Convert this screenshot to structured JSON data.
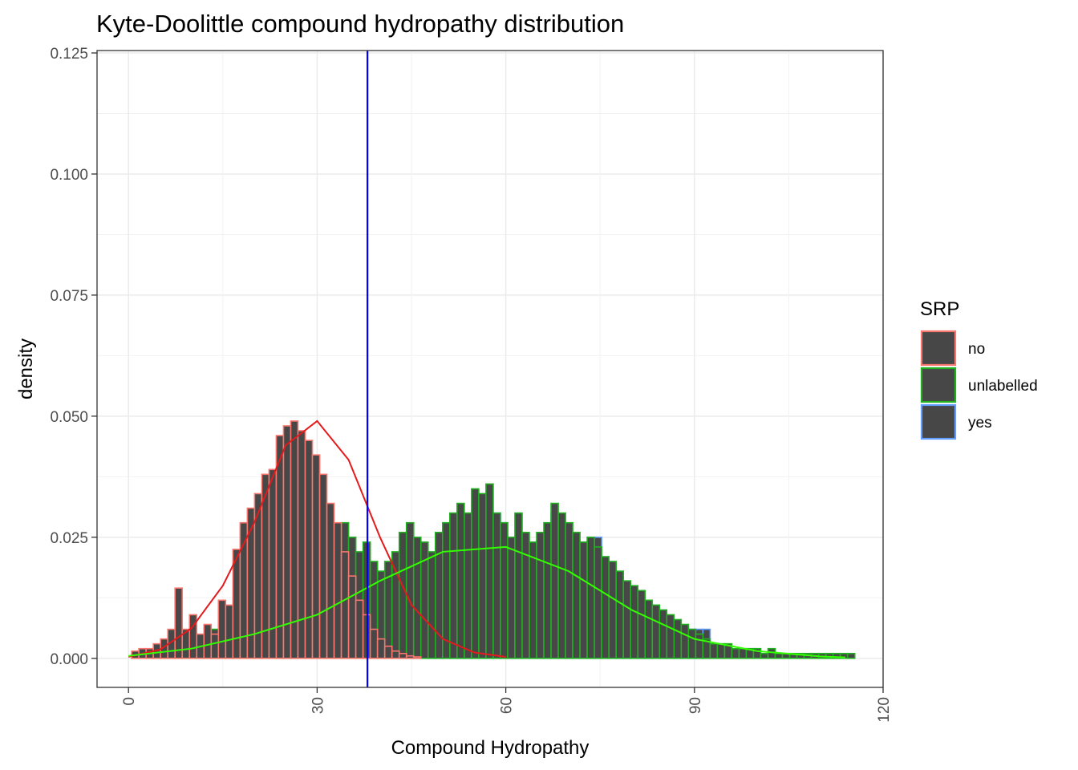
{
  "chart_data": {
    "type": "histogram",
    "title": "Kyte-Doolittle compound hydropathy distribution",
    "xlabel": "Compound Hydropathy",
    "ylabel": "density",
    "xlim": [
      -5,
      120
    ],
    "ylim": [
      -0.006,
      0.1255
    ],
    "x_ticks": [
      0,
      30,
      60,
      90,
      120
    ],
    "y_ticks": [
      0.0,
      0.025,
      0.05,
      0.075,
      0.1,
      0.125
    ],
    "y_tick_labels": [
      "0.000",
      "0.025",
      "0.050",
      "0.075",
      "0.100",
      "0.125"
    ],
    "grid": true,
    "legend": {
      "title": "SRP",
      "position": "right",
      "fill": "#474747",
      "items": [
        {
          "label": "no",
          "color": "#F8766D"
        },
        {
          "label": "unlabelled",
          "color": "#20B020"
        },
        {
          "label": "yes",
          "color": "#619CFF"
        }
      ]
    },
    "bin_start": 0.5,
    "bin_width": 1.15,
    "series": [
      {
        "name": "yes",
        "color": "#619CFF",
        "fill": "#474747",
        "values": [
          0,
          0,
          0,
          0,
          0,
          0,
          0,
          0,
          0,
          0,
          0,
          0,
          0,
          0,
          0,
          0,
          0,
          0,
          0,
          0,
          0.008,
          0.008,
          0.008,
          0,
          0,
          0,
          0,
          0,
          0,
          0,
          0,
          0,
          0,
          0,
          0,
          0,
          0,
          0.008,
          0.008,
          0.016,
          0.016,
          0.02,
          0.018,
          0.016,
          0.018,
          0.02,
          0.022,
          0.028,
          0.023,
          0.025,
          0.03,
          0.028,
          0.025,
          0.023,
          0.022,
          0.02,
          0.022,
          0.025,
          0.03,
          0.025,
          0.022,
          0.02,
          0.018,
          0.025,
          0.025,
          0.02,
          0.018,
          0.016,
          0.015,
          0.014,
          0.012,
          0.01,
          0.008,
          0.008,
          0.008,
          0.006,
          0.006,
          0.006,
          0.006,
          0.006,
          0,
          0,
          0,
          0,
          0,
          0,
          0,
          0,
          0,
          0,
          0,
          0,
          0,
          0,
          0,
          0,
          0,
          0,
          0,
          0
        ]
      },
      {
        "name": "unlabelled",
        "color": "#20B020",
        "fill": "#474747",
        "values": [
          0.001,
          0,
          0.001,
          0.002,
          0.002,
          0.003,
          0.002,
          0.003,
          0.004,
          0.003,
          0.004,
          0.006,
          0.008,
          0.01,
          0.012,
          0.013,
          0.014,
          0.013,
          0.015,
          0.016,
          0.02,
          0.018,
          0.02,
          0.02,
          0.025,
          0.02,
          0.022,
          0.024,
          0.025,
          0.028,
          0.025,
          0.022,
          0.024,
          0.02,
          0.018,
          0.02,
          0.022,
          0.026,
          0.028,
          0.025,
          0.024,
          0.022,
          0.026,
          0.028,
          0.03,
          0.032,
          0.03,
          0.035,
          0.034,
          0.036,
          0.03,
          0.028,
          0.025,
          0.03,
          0.026,
          0.024,
          0.026,
          0.028,
          0.032,
          0.03,
          0.028,
          0.026,
          0.024,
          0.025,
          0.023,
          0.021,
          0.02,
          0.018,
          0.016,
          0.015,
          0.014,
          0.012,
          0.011,
          0.01,
          0.009,
          0.008,
          0.007,
          0.006,
          0.005,
          0.004,
          0.003,
          0.003,
          0.003,
          0.002,
          0.002,
          0.002,
          0.002,
          0.001,
          0.002,
          0.001,
          0.001,
          0.001,
          0.001,
          0.001,
          0.001,
          0.001,
          0.001,
          0.001,
          0.001,
          0.001
        ]
      },
      {
        "name": "no",
        "color": "#F8766D",
        "fill": "#474747",
        "values": [
          0.0015,
          0.002,
          0.002,
          0.003,
          0.004,
          0.006,
          0.0145,
          0.006,
          0.009,
          0.005,
          0.007,
          0.005,
          0.012,
          0.011,
          0.0225,
          0.028,
          0.031,
          0.034,
          0.038,
          0.039,
          0.046,
          0.048,
          0.049,
          0.047,
          0.045,
          0.042,
          0.038,
          0.032,
          0.028,
          0.022,
          0.017,
          0.012,
          0.009,
          0.006,
          0.004,
          0.0025,
          0.0015,
          0.001,
          0.0005,
          0.0003,
          0,
          0,
          0,
          0,
          0,
          0,
          0,
          0,
          0,
          0,
          0,
          0,
          0,
          0,
          0,
          0,
          0,
          0,
          0,
          0,
          0,
          0,
          0,
          0,
          0,
          0,
          0,
          0,
          0,
          0,
          0,
          0,
          0,
          0,
          0,
          0,
          0,
          0,
          0,
          0,
          0,
          0,
          0,
          0,
          0,
          0,
          0,
          0,
          0,
          0,
          0,
          0,
          0,
          0,
          0,
          0,
          0,
          0,
          0,
          0
        ]
      }
    ],
    "density_curves": [
      {
        "name": "no",
        "color": "#E41A1C",
        "x_values": [
          0,
          5,
          10,
          15,
          20,
          25,
          30,
          35,
          40,
          45,
          50,
          55,
          60
        ],
        "y_values": [
          0.0003,
          0.0018,
          0.0062,
          0.015,
          0.028,
          0.044,
          0.049,
          0.041,
          0.025,
          0.011,
          0.004,
          0.0012,
          0.0003
        ]
      },
      {
        "name": "unlabelled",
        "color": "#33FF00",
        "x_values": [
          0,
          10,
          20,
          30,
          40,
          50,
          60,
          70,
          80,
          90,
          100,
          110,
          114
        ],
        "y_values": [
          0.0005,
          0.002,
          0.005,
          0.009,
          0.016,
          0.022,
          0.023,
          0.018,
          0.01,
          0.004,
          0.0015,
          0.0004,
          0.0002
        ]
      }
    ],
    "vline": {
      "x": 38,
      "color": "#0000FF"
    }
  }
}
